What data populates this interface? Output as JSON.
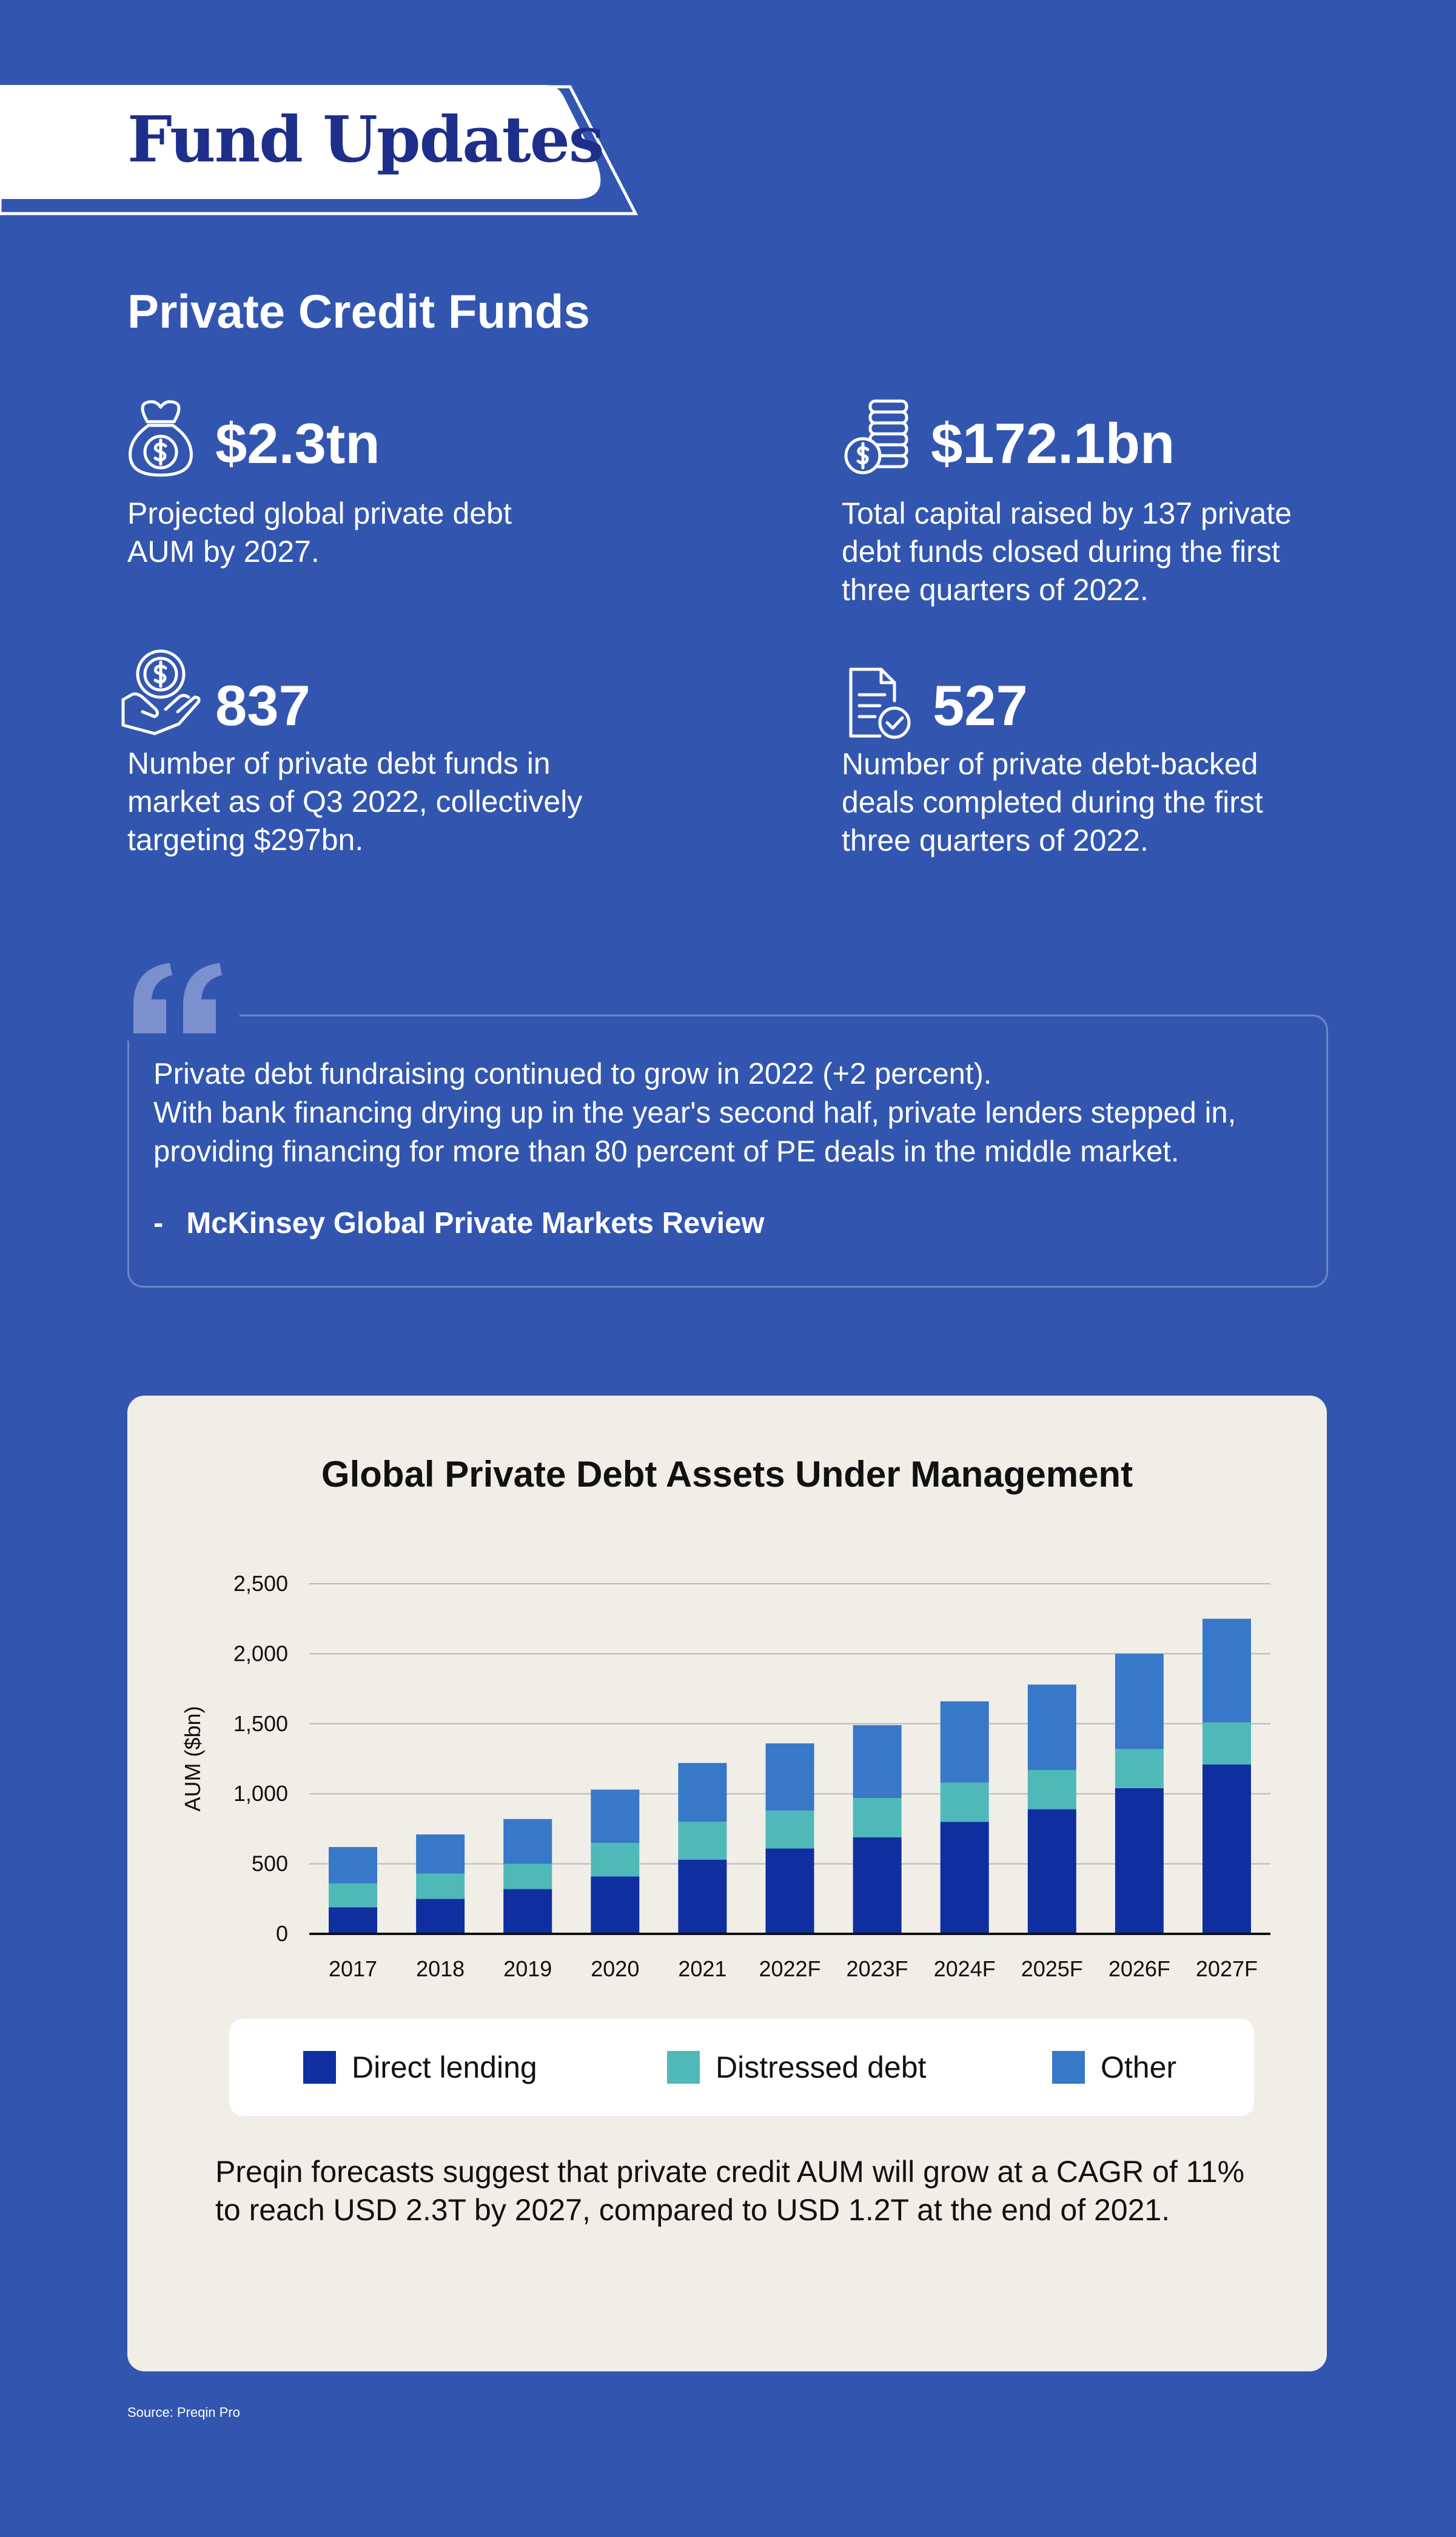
{
  "header": {
    "title": "Fund Updates"
  },
  "section": {
    "title": "Private Credit Funds"
  },
  "stats": [
    {
      "icon": "money-bag-icon",
      "value": "$2.3tn",
      "description": "Projected global private debt AUM by 2027."
    },
    {
      "icon": "coin-stack-icon",
      "value": "$172.1bn",
      "description": "Total capital raised by 137 private debt funds closed during the first three quarters of 2022."
    },
    {
      "icon": "hand-coin-icon",
      "value": "837",
      "description": "Number of private debt funds in market as of Q3 2022, collectively targeting $297bn."
    },
    {
      "icon": "document-check-icon",
      "value": "527",
      "description": "Number of private debt-backed deals completed during the first three quarters of 2022."
    }
  ],
  "quote": {
    "icon": "quote-marks-icon",
    "text": "Private debt fundraising continued to grow in 2022 (+2 percent).\nWith bank financing drying up in the year's second half, private lenders stepped in, providing financing for more than 80 percent of PE deals in the middle market.",
    "dash": "-",
    "source": "McKinsey Global Private Markets Review"
  },
  "chart_data": {
    "type": "bar",
    "stacked": true,
    "title": "Global Private Debt Assets Under Management",
    "xlabel": "",
    "ylabel": "AUM ($bn)",
    "ylim": [
      0,
      2500
    ],
    "yticks": [
      0,
      500,
      1000,
      1500,
      2000,
      2500
    ],
    "ytick_labels": [
      "0",
      "500",
      "1,000",
      "1,500",
      "2,000",
      "2,500"
    ],
    "grid": true,
    "legend_position": "bottom",
    "categories": [
      "2017",
      "2018",
      "2019",
      "2020",
      "2021",
      "2022F",
      "2023F",
      "2024F",
      "2025F",
      "2026F",
      "2027F"
    ],
    "series": [
      {
        "name": "Direct lending",
        "color": "#0f2fa0",
        "values": [
          190,
          250,
          320,
          410,
          530,
          610,
          690,
          800,
          890,
          1040,
          1210
        ]
      },
      {
        "name": "Distressed debt",
        "color": "#4fb9b9",
        "values": [
          170,
          180,
          180,
          240,
          270,
          270,
          280,
          280,
          280,
          280,
          300
        ]
      },
      {
        "name": "Other",
        "color": "#3778c8",
        "values": [
          260,
          280,
          320,
          380,
          420,
          480,
          520,
          580,
          610,
          680,
          740
        ]
      }
    ]
  },
  "chart_note": "Preqin forecasts suggest that private credit AUM will grow at a CAGR of 11% to reach USD 2.3T by 2027, compared to USD 1.2T at the end of 2021.",
  "source": "Source: Preqin Pro",
  "colors": {
    "background": "#3256b0",
    "card": "#f1eee8",
    "title_navy": "#1d2f8a"
  }
}
